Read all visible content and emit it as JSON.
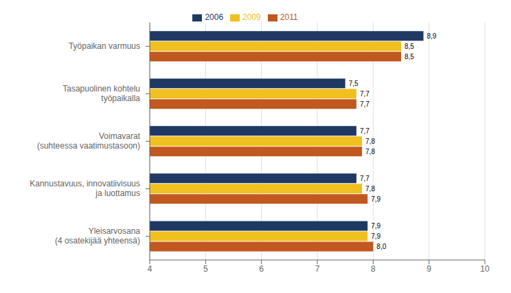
{
  "chart_data": {
    "type": "bar",
    "orientation": "horizontal",
    "categories": [
      "Työpaikan varmuus",
      "Tasapuolinen kohtelu\ntyöpaikalla",
      "Voimavarat\n(suhteessa vaatimustasoon)",
      "Kannustavuus, innovatiivisuus\nja luottamus",
      "Yleisarvosana\n(4 osatekijää yhteensä)"
    ],
    "series": [
      {
        "name": "2006",
        "color": "#1F3864",
        "values": [
          8.9,
          7.5,
          7.7,
          7.7,
          7.9
        ],
        "value_labels": [
          "8,9",
          "7,5",
          "7,7",
          "7,7",
          "7,9"
        ]
      },
      {
        "name": "2009",
        "color": "#F0C020",
        "values": [
          8.5,
          7.7,
          7.8,
          7.8,
          7.9
        ],
        "value_labels": [
          "8,5",
          "7,7",
          "7,8",
          "7,8",
          "7,9"
        ]
      },
      {
        "name": "2011",
        "color": "#C05820",
        "values": [
          8.5,
          7.7,
          7.8,
          7.9,
          8.0
        ],
        "value_labels": [
          "8,5",
          "7,7",
          "7,8",
          "7,9",
          "8,0"
        ]
      }
    ],
    "xlim": [
      4,
      10
    ],
    "xticks": [
      4,
      5,
      6,
      7,
      8,
      9,
      10
    ],
    "grid": true,
    "legend": "top",
    "data_labels": true
  }
}
